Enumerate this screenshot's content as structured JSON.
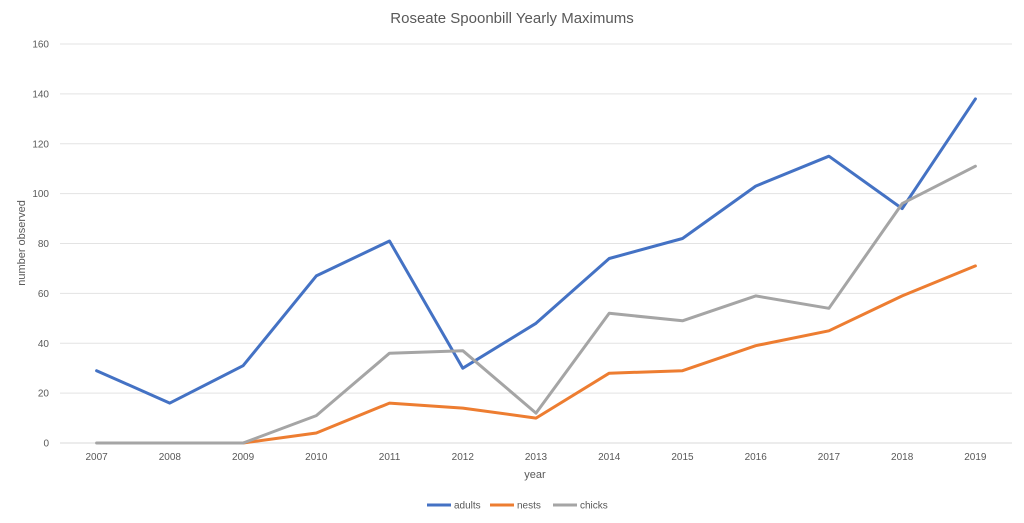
{
  "chart_data": {
    "type": "line",
    "title": "Roseate Spoonbill Yearly Maximums",
    "xlabel": "year",
    "ylabel": "number observed",
    "categories": [
      "2007",
      "2008",
      "2009",
      "2010",
      "2011",
      "2012",
      "2013",
      "2014",
      "2015",
      "2016",
      "2017",
      "2018",
      "2019"
    ],
    "ylim": [
      0,
      160
    ],
    "yticks": [
      0,
      20,
      40,
      60,
      80,
      100,
      120,
      140,
      160
    ],
    "grid": true,
    "legend": "bottom",
    "series": [
      {
        "name": "adults",
        "color": "#4472C4",
        "values": [
          29,
          16,
          31,
          67,
          81,
          30,
          48,
          74,
          82,
          103,
          115,
          94,
          138
        ]
      },
      {
        "name": "nests",
        "color": "#ED7D31",
        "values": [
          null,
          null,
          0,
          4,
          16,
          14,
          10,
          28,
          29,
          39,
          45,
          59,
          71
        ]
      },
      {
        "name": "chicks",
        "color": "#A5A5A5",
        "values": [
          0,
          0,
          0,
          11,
          36,
          37,
          12,
          52,
          49,
          59,
          54,
          96,
          111
        ]
      }
    ]
  }
}
